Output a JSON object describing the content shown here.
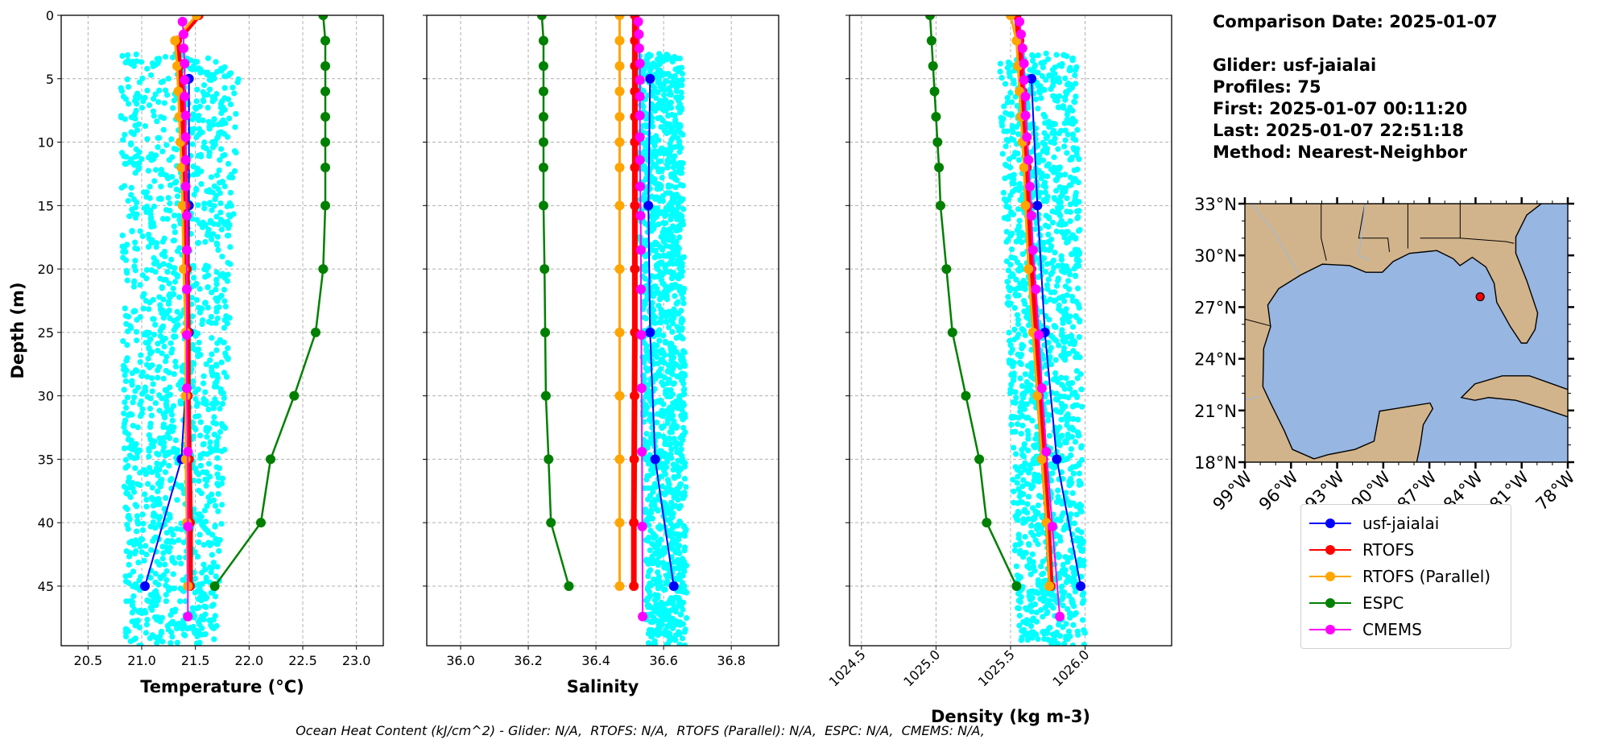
{
  "info": {
    "comparison_date": "Comparison Date: 2025-01-07",
    "glider": "Glider: usf-jaialai",
    "profiles": "Profiles: 75",
    "first": "First: 2025-01-07 00:11:20",
    "last": "Last: 2025-01-07 22:51:18",
    "method": "Method: Nearest-Neighbor"
  },
  "caption": "Ocean Heat Content (kJ/cm^2) - Glider: N/A,  RTOFS: N/A,  RTOFS (Parallel): N/A,  ESPC: N/A,  CMEMS: N/A,",
  "legend": [
    {
      "label": "usf-jaialai",
      "color": "#0000ff"
    },
    {
      "label": "RTOFS",
      "color": "#ff0000"
    },
    {
      "label": "RTOFS (Parallel)",
      "color": "#ffa500"
    },
    {
      "label": "ESPC",
      "color": "#008000"
    },
    {
      "label": "CMEMS",
      "color": "#ff00ff"
    }
  ],
  "chart_data": [
    {
      "type": "line",
      "id": "temperature",
      "xlabel": "Temperature (°C)",
      "ylabel": "Depth (m)",
      "xlim": [
        20.25,
        23.25
      ],
      "ylim": [
        49.7,
        0
      ],
      "xticks": [
        20.5,
        21.0,
        21.5,
        22.0,
        22.5,
        23.0
      ],
      "xtick_labels": [
        "20.5",
        "21.0",
        "21.5",
        "22.0",
        "22.5",
        "23.0"
      ],
      "yticks": [
        0,
        5,
        10,
        15,
        20,
        25,
        30,
        35,
        40,
        45
      ],
      "ytick_labels": [
        "0",
        "5",
        "10",
        "15",
        "20",
        "25",
        "30",
        "35",
        "40",
        "45"
      ],
      "grid": true,
      "scatter": {
        "name": "glider observations",
        "color": "#00ffff",
        "depth_range": [
          3,
          49.7
        ],
        "x_range_top": [
          20.8,
          21.92
        ],
        "x_range_bottom": [
          20.85,
          21.7
        ],
        "count": 1400
      },
      "series": [
        {
          "name": "usf-jaialai",
          "color": "#0000ff",
          "depth": [
            5,
            15,
            25,
            35,
            45
          ],
          "values": [
            21.44,
            21.44,
            21.44,
            21.37,
            21.03
          ]
        },
        {
          "name": "RTOFS",
          "color": "#ff0000",
          "depth": [
            0,
            2,
            4,
            6,
            8,
            10,
            12,
            15,
            20,
            25,
            30,
            35,
            40,
            45
          ],
          "values": [
            21.53,
            21.33,
            21.35,
            21.37,
            21.38,
            21.39,
            21.4,
            21.41,
            21.42,
            21.43,
            21.43,
            21.44,
            21.45,
            21.45
          ]
        },
        {
          "name": "RTOFS (Parallel)",
          "color": "#ffa500",
          "depth": [
            0,
            2,
            4,
            6,
            8,
            10,
            12,
            15,
            20,
            25,
            30,
            35,
            40,
            45
          ],
          "values": [
            21.51,
            21.31,
            21.33,
            21.34,
            21.35,
            21.36,
            21.37,
            21.38,
            21.39,
            21.41,
            21.41,
            21.41,
            21.42,
            21.43
          ]
        },
        {
          "name": "ESPC",
          "color": "#008000",
          "depth": [
            0,
            2,
            4,
            6,
            8,
            10,
            12,
            15,
            20,
            25,
            30,
            35,
            40,
            45
          ],
          "values": [
            22.69,
            22.71,
            22.71,
            22.71,
            22.71,
            22.71,
            22.71,
            22.71,
            22.69,
            22.62,
            22.42,
            22.2,
            22.11,
            21.68
          ]
        },
        {
          "name": "CMEMS",
          "color": "#ff00ff",
          "depth": [
            0.5,
            1.5,
            2.6,
            3.8,
            5.1,
            6.4,
            7.9,
            9.6,
            11.4,
            13.5,
            15.8,
            18.5,
            21.6,
            25.2,
            29.4,
            34.4,
            40.3,
            47.4
          ],
          "values": [
            21.38,
            21.39,
            21.39,
            21.4,
            21.4,
            21.4,
            21.41,
            21.41,
            21.41,
            21.41,
            21.42,
            21.42,
            21.42,
            21.42,
            21.42,
            21.43,
            21.43,
            21.43
          ]
        }
      ]
    },
    {
      "type": "line",
      "id": "salinity",
      "xlabel": "Salinity",
      "ylabel": "",
      "xlim": [
        35.9,
        36.94
      ],
      "ylim": [
        49.7,
        0
      ],
      "xticks": [
        36.0,
        36.2,
        36.4,
        36.6,
        36.8
      ],
      "xtick_labels": [
        "36.0",
        "36.2",
        "36.4",
        "36.6",
        "36.8"
      ],
      "yticks": [
        0,
        5,
        10,
        15,
        20,
        25,
        30,
        35,
        40,
        45
      ],
      "grid": true,
      "scatter": {
        "name": "glider observations",
        "color": "#00ffff",
        "depth_range": [
          3,
          49.7
        ],
        "x_range_top": [
          36.52,
          36.655
        ],
        "x_range_bottom": [
          36.55,
          36.67
        ],
        "count": 1400
      },
      "series": [
        {
          "name": "usf-jaialai",
          "color": "#0000ff",
          "depth": [
            5,
            15,
            25,
            35,
            45
          ],
          "values": [
            36.56,
            36.555,
            36.56,
            36.575,
            36.63
          ]
        },
        {
          "name": "RTOFS",
          "color": "#ff0000",
          "depth": [
            0,
            2,
            4,
            6,
            8,
            10,
            12,
            15,
            20,
            25,
            30,
            35,
            40,
            45
          ],
          "values": [
            36.515,
            36.515,
            36.515,
            36.515,
            36.515,
            36.515,
            36.515,
            36.515,
            36.515,
            36.515,
            36.514,
            36.513,
            36.512,
            36.512
          ]
        },
        {
          "name": "RTOFS (Parallel)",
          "color": "#ffa500",
          "depth": [
            0,
            2,
            4,
            6,
            8,
            10,
            12,
            15,
            20,
            25,
            30,
            35,
            40,
            45
          ],
          "values": [
            36.47,
            36.47,
            36.47,
            36.47,
            36.47,
            36.47,
            36.47,
            36.47,
            36.47,
            36.47,
            36.47,
            36.47,
            36.47,
            36.47
          ]
        },
        {
          "name": "ESPC",
          "color": "#008000",
          "depth": [
            0,
            2,
            4,
            6,
            8,
            10,
            12,
            15,
            20,
            25,
            30,
            35,
            40,
            45
          ],
          "values": [
            36.24,
            36.245,
            36.245,
            36.245,
            36.245,
            36.245,
            36.245,
            36.245,
            36.248,
            36.25,
            36.252,
            36.26,
            36.267,
            36.32
          ]
        },
        {
          "name": "CMEMS",
          "color": "#ff00ff",
          "depth": [
            0.5,
            1.5,
            2.6,
            3.8,
            5.1,
            6.4,
            7.9,
            9.6,
            11.4,
            13.5,
            15.8,
            18.5,
            21.6,
            25.2,
            29.4,
            34.4,
            40.3,
            47.4
          ],
          "values": [
            36.525,
            36.527,
            36.528,
            36.53,
            36.53,
            36.53,
            36.53,
            36.53,
            36.53,
            36.531,
            36.532,
            36.533,
            36.533,
            36.534,
            36.535,
            36.536,
            36.537,
            36.538
          ]
        }
      ]
    },
    {
      "type": "line",
      "id": "density",
      "xlabel": "Density (kg m-3)",
      "ylabel": "",
      "xlim": [
        1024.42,
        1026.58
      ],
      "ylim": [
        49.7,
        0
      ],
      "xticks": [
        1024.5,
        1025.0,
        1025.5,
        1026.0
      ],
      "xtick_labels": [
        "1024.5",
        "1025.0",
        "1025.5",
        "1026.0"
      ],
      "yticks": [
        0,
        5,
        10,
        15,
        20,
        25,
        30,
        35,
        40,
        45
      ],
      "grid": true,
      "scatter": {
        "name": "glider observations",
        "color": "#00ffff",
        "depth_range": [
          3,
          49.7
        ],
        "x_range_top": [
          1025.42,
          1025.95
        ],
        "x_range_bottom": [
          1025.55,
          1026.0
        ],
        "count": 1400
      },
      "series": [
        {
          "name": "usf-jaialai",
          "color": "#0000ff",
          "depth": [
            5,
            15,
            25,
            35,
            45
          ],
          "values": [
            1025.64,
            1025.68,
            1025.73,
            1025.81,
            1025.97
          ]
        },
        {
          "name": "RTOFS",
          "color": "#ff0000",
          "depth": [
            0,
            2,
            4,
            6,
            8,
            10,
            12,
            15,
            20,
            25,
            30,
            35,
            40,
            45
          ],
          "values": [
            1025.54,
            1025.56,
            1025.57,
            1025.58,
            1025.59,
            1025.6,
            1025.61,
            1025.62,
            1025.64,
            1025.67,
            1025.69,
            1025.72,
            1025.75,
            1025.77
          ]
        },
        {
          "name": "RTOFS (Parallel)",
          "color": "#ffa500",
          "depth": [
            0,
            2,
            4,
            6,
            8,
            10,
            12,
            15,
            20,
            25,
            30,
            35,
            40,
            45
          ],
          "values": [
            1025.5,
            1025.54,
            1025.55,
            1025.56,
            1025.57,
            1025.58,
            1025.59,
            1025.6,
            1025.62,
            1025.65,
            1025.68,
            1025.71,
            1025.74,
            1025.76
          ]
        },
        {
          "name": "ESPC",
          "color": "#008000",
          "depth": [
            0,
            2,
            4,
            6,
            8,
            10,
            12,
            15,
            20,
            25,
            30,
            35,
            40,
            45
          ],
          "values": [
            1024.96,
            1024.97,
            1024.98,
            1024.99,
            1025.0,
            1025.01,
            1025.02,
            1025.03,
            1025.07,
            1025.11,
            1025.2,
            1025.29,
            1025.34,
            1025.54
          ]
        },
        {
          "name": "CMEMS",
          "color": "#ff00ff",
          "depth": [
            0.5,
            1.5,
            2.6,
            3.8,
            5.1,
            6.4,
            7.9,
            9.6,
            11.4,
            13.5,
            15.8,
            18.5,
            21.6,
            25.2,
            29.4,
            34.4,
            40.3,
            47.4
          ],
          "values": [
            1025.56,
            1025.57,
            1025.58,
            1025.59,
            1025.59,
            1025.6,
            1025.6,
            1025.61,
            1025.62,
            1025.63,
            1025.64,
            1025.65,
            1025.67,
            1025.69,
            1025.71,
            1025.74,
            1025.78,
            1025.83
          ]
        }
      ]
    },
    {
      "type": "map",
      "id": "location-map",
      "lon_range": [
        -99,
        -78
      ],
      "lat_range": [
        18,
        33
      ],
      "lon_ticks": [
        -99,
        -96,
        -93,
        -90,
        -87,
        -84,
        -81,
        -78
      ],
      "lon_tick_labels": [
        "99°W",
        "96°W",
        "93°W",
        "90°W",
        "87°W",
        "84°W",
        "81°W",
        "78°W"
      ],
      "lat_ticks": [
        18,
        21,
        24,
        27,
        30,
        33
      ],
      "lat_tick_labels": [
        "18°N",
        "21°N",
        "24°N",
        "27°N",
        "30°N",
        "33°N"
      ],
      "land_color": "#d2b48c",
      "water_color": "#97b6e1",
      "glider_position": {
        "lon": -83.7,
        "lat": 27.6,
        "color": "#ff0000"
      }
    }
  ]
}
